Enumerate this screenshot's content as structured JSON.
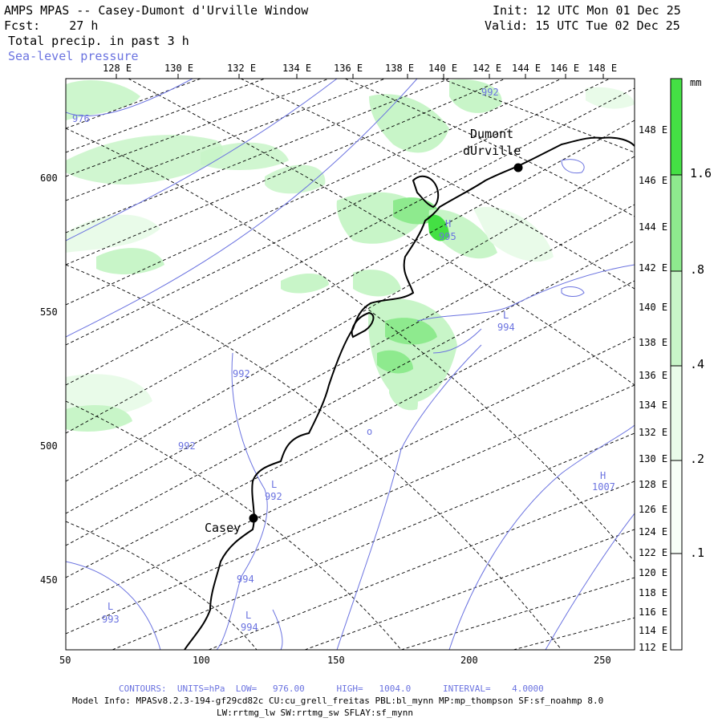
{
  "header": {
    "title": "AMPS MPAS -- Casey-Dumont d'Urville Window",
    "fcst": "Fcst:    27 h",
    "field": "Total precip. in past 3 h",
    "overlay": "Sea-level pressure",
    "init": "Init: 12 UTC Mon 01 Dec 25",
    "valid": "Valid: 15 UTC Tue 02 Dec 25"
  },
  "axes": {
    "top_lon_labels": [
      "128 E",
      "130 E",
      "132 E",
      "134 E",
      "136 E",
      "138 E",
      "140 E",
      "142 E",
      "144 E",
      "146 E",
      "148 E"
    ],
    "right_lon_labels": [
      "148 E",
      "146 E",
      "144 E",
      "142 E",
      "140 E",
      "138 E",
      "136 E",
      "134 E",
      "132 E",
      "130 E",
      "128 E",
      "126 E",
      "124 E",
      "122 E",
      "120 E",
      "118 E",
      "116 E",
      "114 E",
      "112 E"
    ],
    "bottom_ticks": [
      "50",
      "100",
      "150",
      "200",
      "250"
    ],
    "left_ticks": [
      "600",
      "550",
      "500",
      "450"
    ]
  },
  "colorbar": {
    "unit": "mm",
    "levels": [
      ".1",
      ".2",
      ".4",
      ".8",
      "1.6"
    ],
    "colors": [
      "#ffffff",
      "#e9fbe9",
      "#c8f5c8",
      "#8eea8e",
      "#44e044"
    ]
  },
  "stations": [
    {
      "name": "Casey"
    },
    {
      "name": "Dumont"
    },
    {
      "name": "dUrville"
    }
  ],
  "contour_labels": [
    {
      "text": "976"
    },
    {
      "text": "992"
    },
    {
      "text": "992"
    },
    {
      "text": "992"
    },
    {
      "text": "995"
    },
    {
      "text": "994"
    },
    {
      "text": "992"
    },
    {
      "text": "994"
    },
    {
      "text": "994"
    },
    {
      "text": "993"
    },
    {
      "text": "1007"
    },
    {
      "text": "o"
    }
  ],
  "pressure_marks": [
    {
      "text": "L"
    },
    {
      "text": "L"
    },
    {
      "text": "L"
    },
    {
      "text": "L"
    },
    {
      "text": "H"
    },
    {
      "text": "H"
    }
  ],
  "footer": {
    "contours": "CONTOURS:  UNITS=hPa  LOW=   976.00      HIGH=   1004.0      INTERVAL=    4.0000",
    "model_info": "Model Info: MPASv8.2.3-194-gf29cd82c CU:cu_grell_freitas PBL:bl_mynn MP:mp_thompson SF:sf_noahmp 8.0",
    "physics": "LW:rrtmg_lw SW:rrtmg_sw SFLAY:sf_mynn"
  },
  "colors": {
    "contour": "#6b73e0",
    "coast": "#000000",
    "grid": "#000000"
  }
}
